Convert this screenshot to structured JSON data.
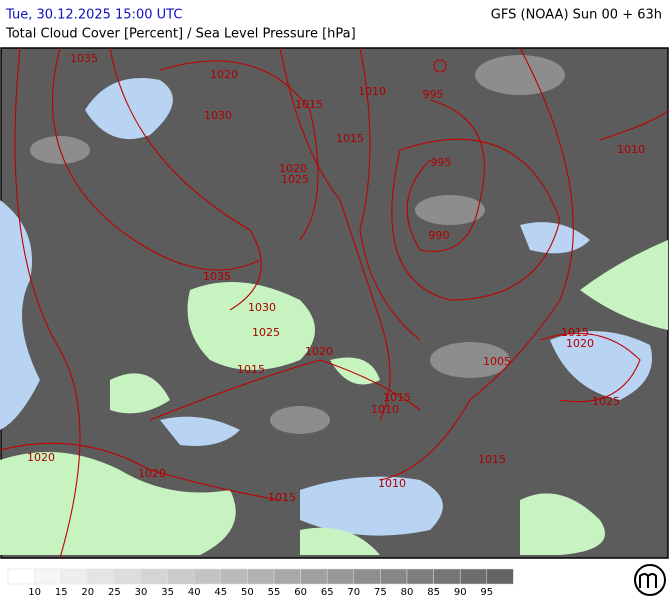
{
  "header": {
    "run_time": "Tue, 30.12.2025 15:00 UTC",
    "model": "GFS (NOAA) Sun 00 + 63h",
    "title": "Total Cloud Cover [Percent] / Sea Level Pressure [hPa]"
  },
  "map": {
    "isobar_labels": [
      1035,
      1020,
      1030,
      1015,
      1010,
      995,
      1015,
      1020,
      1025,
      995,
      1010,
      990,
      1035,
      1030,
      1025,
      1020,
      1015,
      1020,
      1005,
      1015,
      1015,
      1010,
      1025,
      1020,
      1015,
      1020,
      1010,
      1015
    ]
  },
  "legend": {
    "labels": [
      10,
      15,
      20,
      25,
      30,
      35,
      40,
      45,
      50,
      55,
      60,
      65,
      70,
      75,
      80,
      85,
      90,
      95
    ]
  }
}
